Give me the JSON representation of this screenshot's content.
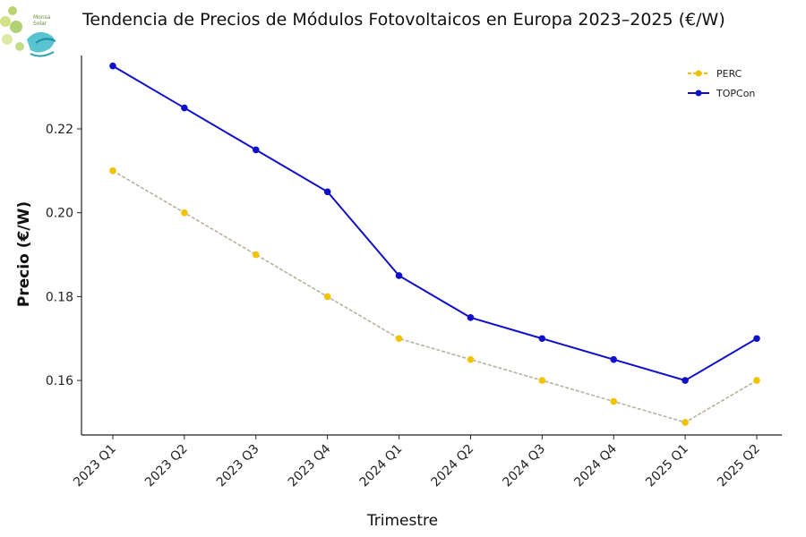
{
  "chart_data": {
    "type": "line",
    "title": "Tendencia de Precios de Módulos Fotovoltaicos en Europa 2023–2025 (€/W)",
    "xlabel": "Trimestre",
    "ylabel": "Precio (€/W)",
    "categories": [
      "2023 Q1",
      "2023 Q2",
      "2023 Q3",
      "2023 Q4",
      "2024 Q1",
      "2024 Q2",
      "2024 Q3",
      "2024 Q4",
      "2025 Q1",
      "2025 Q2"
    ],
    "ylim": [
      0.147,
      0.2375
    ],
    "yticks": [
      0.16,
      0.18,
      0.2,
      0.22
    ],
    "ytick_labels": [
      "0.16",
      "0.18",
      "0.20",
      "0.22"
    ],
    "grid": false,
    "legend_position": "top-right",
    "series": [
      {
        "name": "PERC",
        "color": "#f2c200",
        "line_color": "#b8b0a0",
        "line_style": "dashed",
        "values": [
          0.21,
          0.2,
          0.19,
          0.18,
          0.17,
          0.165,
          0.16,
          0.155,
          0.15,
          0.16
        ]
      },
      {
        "name": "TOPCon",
        "color": "#1010c8",
        "line_color": "#1010c8",
        "line_style": "solid",
        "values": [
          0.235,
          0.225,
          0.215,
          0.205,
          0.185,
          0.175,
          0.17,
          0.165,
          0.16,
          0.17
        ]
      }
    ]
  },
  "logo": {
    "text_line1": "Monsa",
    "text_line2": "Solar"
  }
}
